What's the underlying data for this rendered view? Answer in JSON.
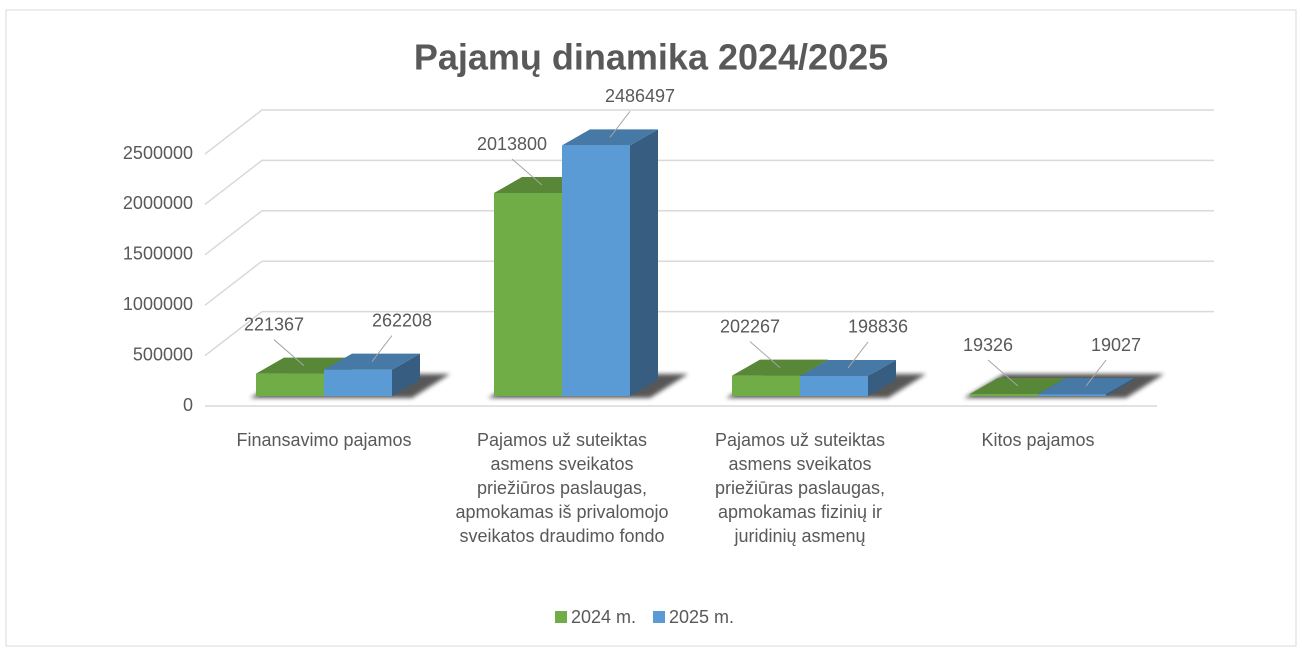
{
  "chart_data": {
    "type": "bar3d",
    "title": "Pajamų dinamika 2024/2025",
    "categories": [
      "Finansavimo pajamos",
      "Pajamos už suteiktas asmens sveikatos priežiūros paslaugas, apmokamas iš privalomojo sveikatos draudimo fondo",
      "Pajamos už suteiktas asmens sveikatos priežiūras paslaugas, apmokamas fizinių ir juridinių asmenų",
      "Kitos pajamos"
    ],
    "series": [
      {
        "name": "2024 m.",
        "color": "#70ad47",
        "values": [
          221367,
          2013800,
          202267,
          19326
        ]
      },
      {
        "name": "2025 m.",
        "color": "#5b9bd5",
        "values": [
          262208,
          2486497,
          198836,
          19027
        ]
      }
    ],
    "ylim": [
      0,
      2500000
    ],
    "yticks": [
      0,
      500000,
      1000000,
      1500000,
      2000000,
      2500000
    ],
    "grid": true,
    "legend": "bottom"
  }
}
